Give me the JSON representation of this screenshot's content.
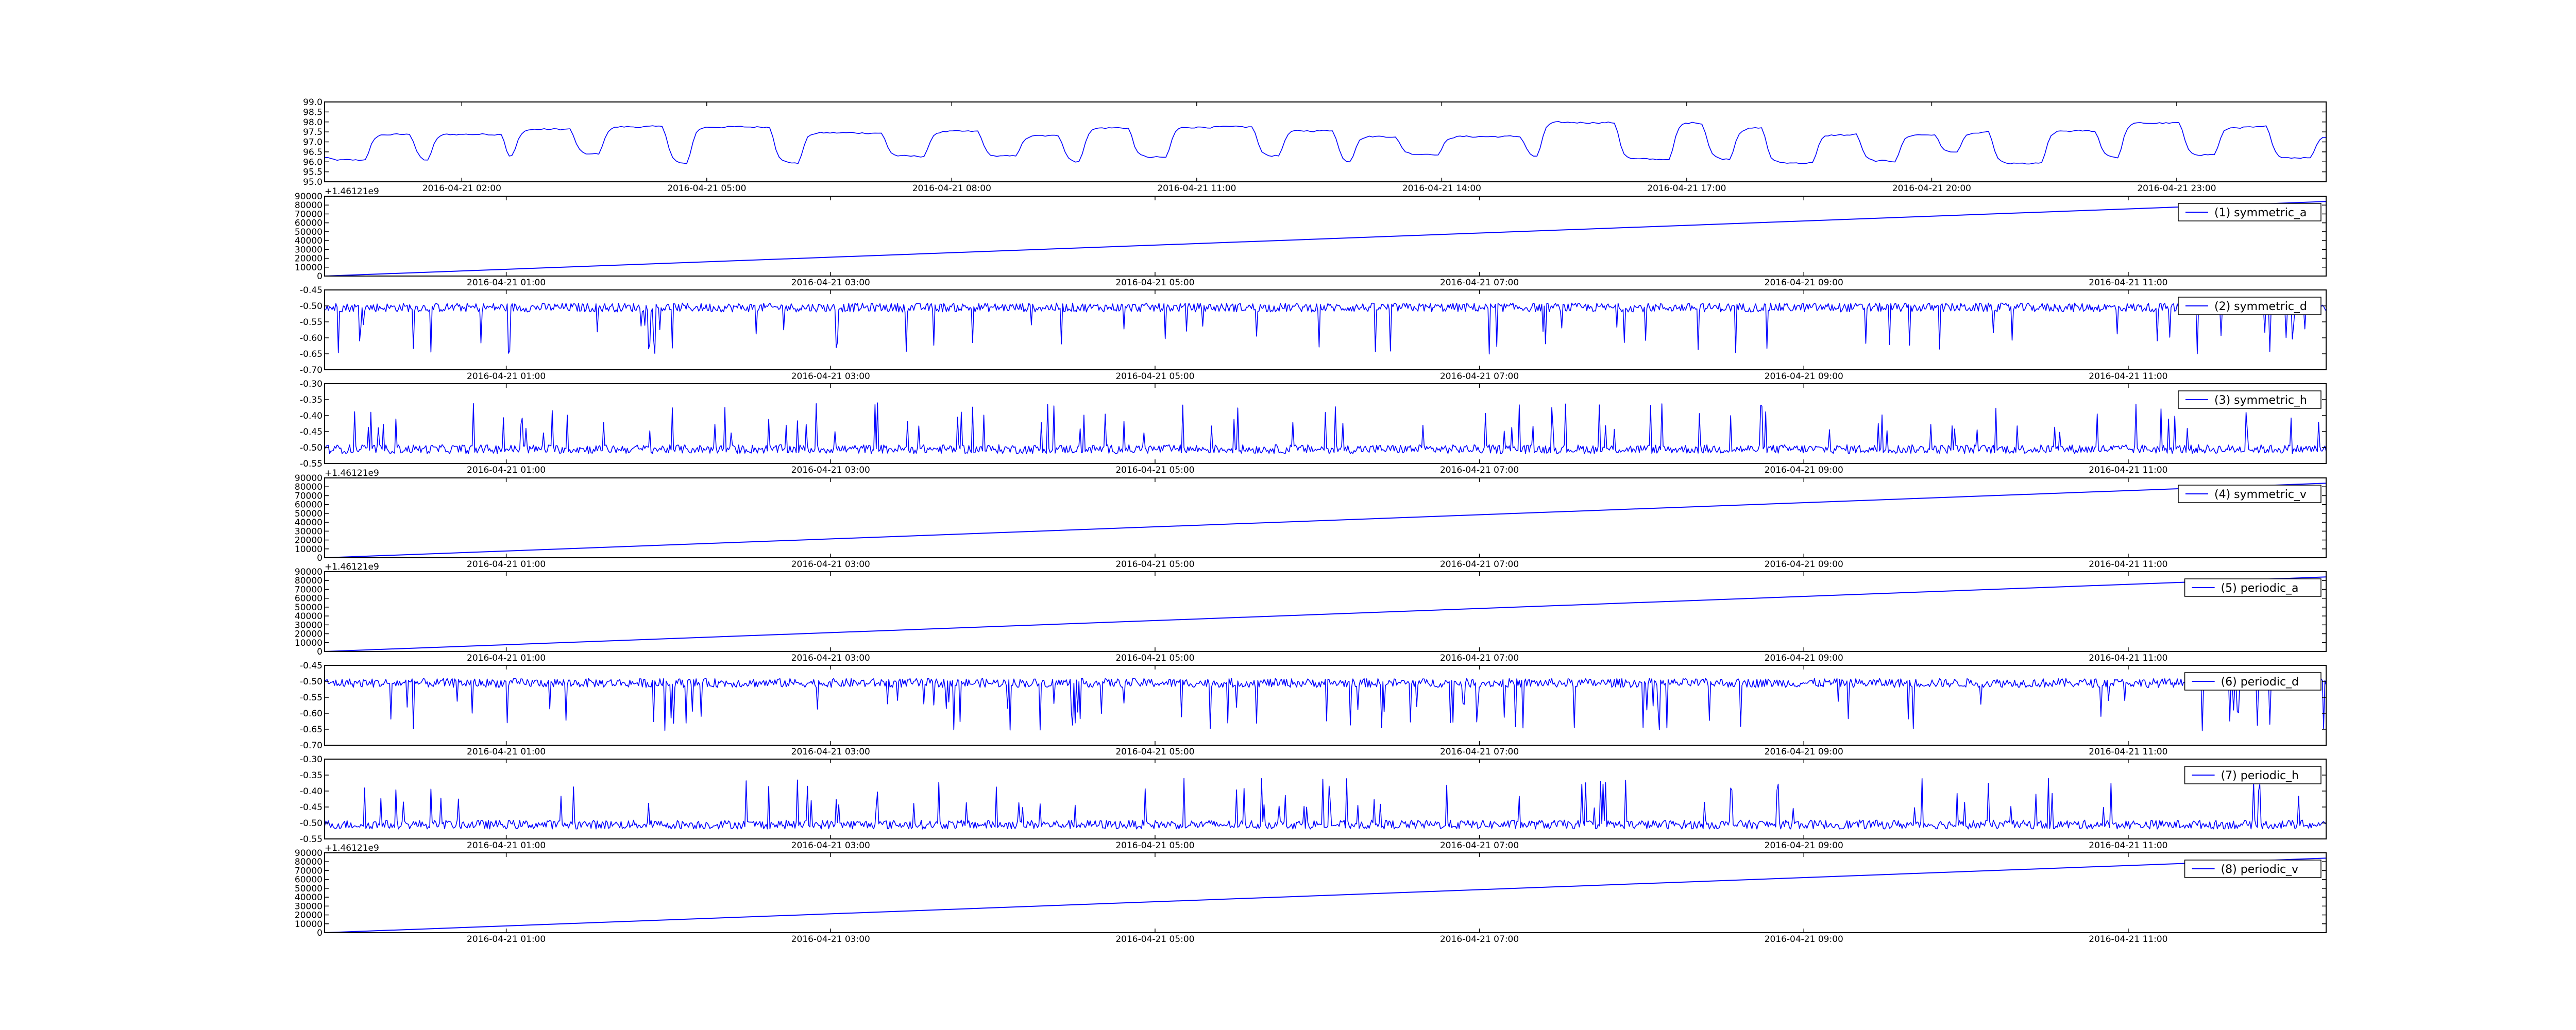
{
  "chart_data": [
    {
      "type": "line",
      "id": "temp",
      "y_offset_label": "",
      "ylim": [
        95.0,
        99.0
      ],
      "y_ticks": [
        "99.0",
        "98.5",
        "98.0",
        "97.5",
        "97.0",
        "96.5",
        "96.0",
        "95.5",
        "95.0"
      ],
      "x_ticks": [
        "2016-04-21 02:00",
        "2016-04-21 05:00",
        "2016-04-21 08:00",
        "2016-04-21 11:00",
        "2016-04-21 14:00",
        "2016-04-21 17:00",
        "2016-04-21 20:00",
        "2016-04-21 23:00"
      ],
      "series": [
        {
          "legend": "",
          "pattern": "step",
          "base": 96.2,
          "high": 97.6,
          "color": "#0000ff"
        }
      ]
    },
    {
      "type": "line",
      "id": "symmetric_a",
      "y_offset_label": "+1.46121e9",
      "ylim": [
        0,
        90000
      ],
      "y_ticks": [
        "90000",
        "80000",
        "70000",
        "60000",
        "50000",
        "40000",
        "30000",
        "20000",
        "10000",
        "0"
      ],
      "x_ticks": [
        "2016-04-21 01:00",
        "2016-04-21 03:00",
        "2016-04-21 05:00",
        "2016-04-21 07:00",
        "2016-04-21 09:00",
        "2016-04-21 11:00"
      ],
      "series": [
        {
          "legend": "(1) symmetric_a",
          "pattern": "linear",
          "start": 0,
          "end": 84000,
          "color": "#0000ff"
        }
      ]
    },
    {
      "type": "line",
      "id": "symmetric_d",
      "y_offset_label": "",
      "ylim": [
        -0.7,
        -0.45
      ],
      "y_ticks": [
        "-0.45",
        "-0.50",
        "-0.55",
        "-0.60",
        "-0.65",
        "-0.70"
      ],
      "x_ticks": [
        "2016-04-21 01:00",
        "2016-04-21 03:00",
        "2016-04-21 05:00",
        "2016-04-21 07:00",
        "2016-04-21 09:00",
        "2016-04-21 11:00"
      ],
      "series": [
        {
          "legend": "(2) symmetric_d",
          "pattern": "noise-down",
          "base": -0.505,
          "spike_to": -0.655,
          "color": "#0000ff"
        }
      ]
    },
    {
      "type": "line",
      "id": "symmetric_h",
      "y_offset_label": "",
      "ylim": [
        -0.55,
        -0.3
      ],
      "y_ticks": [
        "-0.30",
        "-0.35",
        "-0.40",
        "-0.45",
        "-0.50",
        "-0.55"
      ],
      "x_ticks": [
        "2016-04-21 01:00",
        "2016-04-21 03:00",
        "2016-04-21 05:00",
        "2016-04-21 07:00",
        "2016-04-21 09:00",
        "2016-04-21 11:00"
      ],
      "series": [
        {
          "legend": "(3) symmetric_h",
          "pattern": "noise-up",
          "base": -0.505,
          "spike_to": -0.36,
          "color": "#0000ff"
        }
      ]
    },
    {
      "type": "line",
      "id": "symmetric_v",
      "y_offset_label": "+1.46121e9",
      "ylim": [
        0,
        90000
      ],
      "y_ticks": [
        "90000",
        "80000",
        "70000",
        "60000",
        "50000",
        "40000",
        "30000",
        "20000",
        "10000",
        "0"
      ],
      "x_ticks": [
        "2016-04-21 01:00",
        "2016-04-21 03:00",
        "2016-04-21 05:00",
        "2016-04-21 07:00",
        "2016-04-21 09:00",
        "2016-04-21 11:00"
      ],
      "series": [
        {
          "legend": "(4) symmetric_v",
          "pattern": "linear",
          "start": 0,
          "end": 84000,
          "color": "#0000ff"
        }
      ]
    },
    {
      "type": "line",
      "id": "periodic_a",
      "y_offset_label": "+1.46121e9",
      "ylim": [
        0,
        90000
      ],
      "y_ticks": [
        "90000",
        "80000",
        "70000",
        "60000",
        "50000",
        "40000",
        "30000",
        "20000",
        "10000",
        "0"
      ],
      "x_ticks": [
        "2016-04-21 01:00",
        "2016-04-21 03:00",
        "2016-04-21 05:00",
        "2016-04-21 07:00",
        "2016-04-21 09:00",
        "2016-04-21 11:00"
      ],
      "series": [
        {
          "legend": "(5) periodic_a",
          "pattern": "linear",
          "start": 0,
          "end": 84000,
          "color": "#0000ff"
        }
      ]
    },
    {
      "type": "line",
      "id": "periodic_d",
      "y_offset_label": "",
      "ylim": [
        -0.7,
        -0.45
      ],
      "y_ticks": [
        "-0.45",
        "-0.50",
        "-0.55",
        "-0.60",
        "-0.65",
        "-0.70"
      ],
      "x_ticks": [
        "2016-04-21 01:00",
        "2016-04-21 03:00",
        "2016-04-21 05:00",
        "2016-04-21 07:00",
        "2016-04-21 09:00",
        "2016-04-21 11:00"
      ],
      "series": [
        {
          "legend": "(6) periodic_d",
          "pattern": "noise-down",
          "base": -0.505,
          "spike_to": -0.655,
          "color": "#0000ff"
        }
      ]
    },
    {
      "type": "line",
      "id": "periodic_h",
      "y_offset_label": "",
      "ylim": [
        -0.55,
        -0.3
      ],
      "y_ticks": [
        "-0.30",
        "-0.35",
        "-0.40",
        "-0.45",
        "-0.50",
        "-0.55"
      ],
      "x_ticks": [
        "2016-04-21 01:00",
        "2016-04-21 03:00",
        "2016-04-21 05:00",
        "2016-04-21 07:00",
        "2016-04-21 09:00",
        "2016-04-21 11:00"
      ],
      "series": [
        {
          "legend": "(7) periodic_h",
          "pattern": "noise-up",
          "base": -0.505,
          "spike_to": -0.36,
          "color": "#0000ff"
        }
      ]
    },
    {
      "type": "line",
      "id": "periodic_v",
      "y_offset_label": "+1.46121e9",
      "ylim": [
        0,
        90000
      ],
      "y_ticks": [
        "90000",
        "80000",
        "70000",
        "60000",
        "50000",
        "40000",
        "30000",
        "20000",
        "10000",
        "0"
      ],
      "x_ticks": [
        "2016-04-21 01:00",
        "2016-04-21 03:00",
        "2016-04-21 05:00",
        "2016-04-21 07:00",
        "2016-04-21 09:00",
        "2016-04-21 11:00"
      ],
      "series": [
        {
          "legend": "(8) periodic_v",
          "pattern": "linear",
          "start": 0,
          "end": 84000,
          "color": "#0000ff"
        }
      ]
    }
  ]
}
